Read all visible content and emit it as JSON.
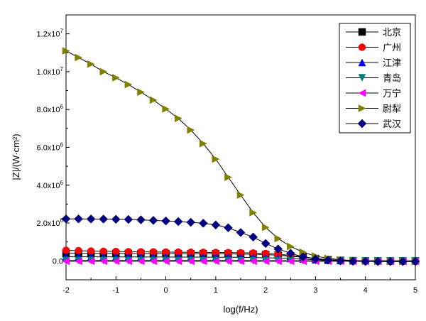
{
  "chart_data": {
    "type": "line",
    "title": "",
    "xlabel": "log(f/Hz)",
    "ylabel": "|Z|/(W·cm²)",
    "xlim": [
      -2,
      5
    ],
    "ylim": [
      -1000000.0,
      13000000.0
    ],
    "x_ticks": [
      {
        "value": -2,
        "label": "-2"
      },
      {
        "value": -1,
        "label": "-1"
      },
      {
        "value": 0,
        "label": "0"
      },
      {
        "value": 1,
        "label": "1"
      },
      {
        "value": 2,
        "label": "2"
      },
      {
        "value": 3,
        "label": "3"
      },
      {
        "value": 4,
        "label": "4"
      },
      {
        "value": 5,
        "label": "5"
      }
    ],
    "y_ticks": [
      {
        "value": 0,
        "mantissa": "0.0",
        "exponent": ""
      },
      {
        "value": 2000000,
        "mantissa": "2.0x10",
        "exponent": "6"
      },
      {
        "value": 4000000,
        "mantissa": "4.0x10",
        "exponent": "6"
      },
      {
        "value": 6000000,
        "mantissa": "6.0x10",
        "exponent": "6"
      },
      {
        "value": 8000000,
        "mantissa": "8.0x10",
        "exponent": "6"
      },
      {
        "value": 10000000,
        "mantissa": "1.0x10",
        "exponent": "7"
      },
      {
        "value": 12000000,
        "mantissa": "1.2x10",
        "exponent": "7"
      }
    ],
    "legend_position": "top-right",
    "x": [
      -2.0,
      -1.75,
      -1.5,
      -1.25,
      -1.0,
      -0.75,
      -0.5,
      -0.25,
      0.0,
      0.25,
      0.5,
      0.75,
      1.0,
      1.25,
      1.5,
      1.75,
      2.0,
      2.25,
      2.5,
      2.75,
      3.0,
      3.25,
      3.5,
      3.75,
      4.0,
      4.25,
      4.5,
      4.75,
      5.0
    ],
    "series": [
      {
        "name": "北京",
        "color": "#000000",
        "marker": "square",
        "values": [
          400000,
          398000,
          396000,
          394000,
          392000,
          390000,
          388000,
          386000,
          384000,
          382000,
          380000,
          378000,
          375000,
          370000,
          362000,
          350000,
          330000,
          300000,
          250000,
          190000,
          120000,
          60000,
          25000,
          10000,
          4000,
          2000,
          1000,
          500,
          300
        ]
      },
      {
        "name": "广州",
        "color": "#ff0000",
        "marker": "circle",
        "values": [
          560000,
          540000,
          520000,
          505000,
          495000,
          485000,
          478000,
          472000,
          466000,
          460000,
          455000,
          450000,
          445000,
          438000,
          430000,
          415000,
          390000,
          350000,
          290000,
          210000,
          130000,
          65000,
          28000,
          11000,
          4500,
          2000,
          1000,
          500,
          300
        ]
      },
      {
        "name": "江津",
        "color": "#0000ff",
        "marker": "triangle-up",
        "values": [
          220000,
          218000,
          216000,
          214000,
          212000,
          210000,
          208000,
          206000,
          204000,
          202000,
          200000,
          198000,
          195000,
          190000,
          185000,
          178000,
          165000,
          148000,
          125000,
          95000,
          62000,
          32000,
          14000,
          6000,
          2500,
          1200,
          600,
          300,
          200
        ]
      },
      {
        "name": "青岛",
        "color": "#008080",
        "marker": "triangle-down",
        "values": [
          20000,
          20000,
          19800,
          19600,
          19400,
          19200,
          19000,
          18800,
          18600,
          18400,
          18200,
          18000,
          17600,
          17200,
          16600,
          15800,
          14600,
          13000,
          11000,
          8600,
          6000,
          3600,
          1800,
          800,
          300,
          150,
          80,
          40,
          20
        ]
      },
      {
        "name": "万宁",
        "color": "#ff00ff",
        "marker": "triangle-left",
        "values": [
          -20000,
          -20000,
          -20000,
          -20000,
          -20000,
          -20000,
          -20000,
          -20000,
          -20000,
          -20000,
          -20000,
          -20000,
          -20000,
          -20000,
          -20000,
          -20000,
          -20000,
          -20000,
          -20000,
          -20000,
          -20000,
          -20000,
          -20000,
          -20000,
          -20000,
          -20000,
          -20000,
          -20000,
          -20000
        ]
      },
      {
        "name": "尉犁",
        "color": "#808000",
        "marker": "triangle-right",
        "values": [
          11100000,
          10750000,
          10400000,
          10000000,
          9680000,
          9320000,
          8920000,
          8500000,
          8030000,
          7530000,
          6920000,
          6200000,
          5380000,
          4420000,
          3480000,
          2550000,
          1770000,
          1180000,
          760000,
          460000,
          255000,
          135000,
          60000,
          18000,
          -15000,
          -25000,
          -28000,
          -28000,
          -28000
        ]
      },
      {
        "name": "武汉",
        "color": "#000080",
        "marker": "diamond",
        "values": [
          2220000,
          2220000,
          2215000,
          2210000,
          2200000,
          2190000,
          2170000,
          2140000,
          2110000,
          2080000,
          2040000,
          1990000,
          1900000,
          1750000,
          1500000,
          1260000,
          920000,
          630000,
          400000,
          210000,
          100000,
          40000,
          5000,
          -20000,
          -30000,
          -35000,
          -35000,
          -35000,
          -35000
        ]
      }
    ]
  }
}
